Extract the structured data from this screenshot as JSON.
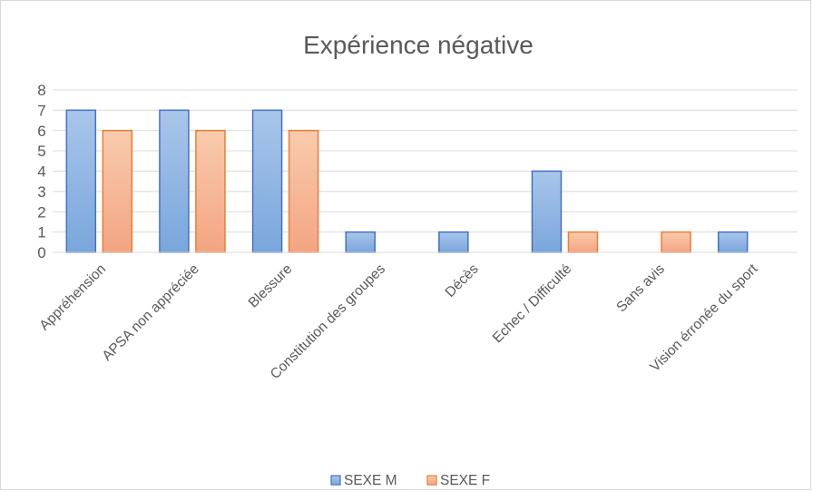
{
  "chart_data": {
    "type": "bar",
    "title": "Expérience  négative",
    "categories": [
      "Appréhension",
      "APSA non appréciée",
      "Blessure",
      "Constitution des groupes",
      "Décès",
      "Echec / Difficulté",
      "Sans avis",
      "Vision érronée du sport"
    ],
    "series": [
      {
        "name": "SEXE M",
        "values": [
          7,
          7,
          7,
          1,
          1,
          4,
          0,
          1
        ],
        "fill_top": "#a9c6ea",
        "fill_bottom": "#7aa6dc",
        "stroke": "#4472c4"
      },
      {
        "name": "SEXE F",
        "values": [
          6,
          6,
          6,
          0,
          0,
          1,
          1,
          0
        ],
        "fill_top": "#f8cbad",
        "fill_bottom": "#f4a582",
        "stroke": "#ed7d31"
      }
    ],
    "ylim": [
      0,
      8
    ],
    "yticks": [
      "0",
      "1",
      "2",
      "3",
      "4",
      "5",
      "6",
      "7",
      "8"
    ],
    "grid": true,
    "legend_position": "bottom",
    "xlabel": "",
    "ylabel": ""
  }
}
